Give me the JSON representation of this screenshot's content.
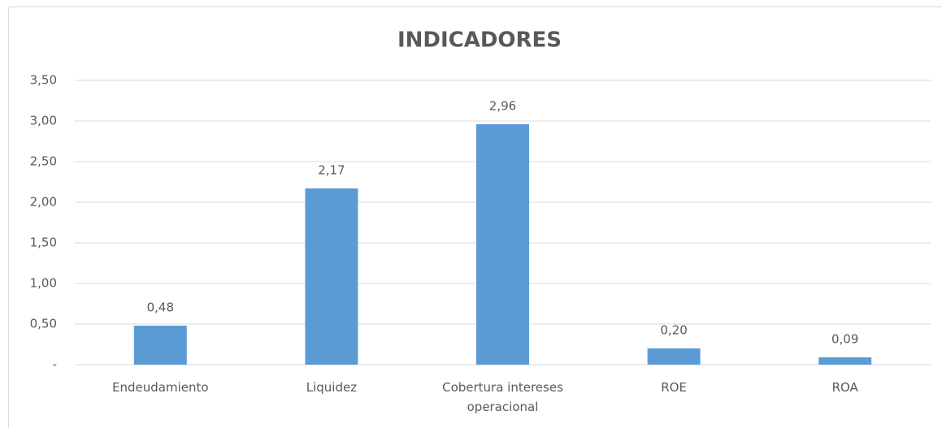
{
  "chart_data": {
    "type": "bar",
    "title": "INDICADORES",
    "categories": [
      "Endeudamiento",
      "Liquidez",
      "Cobertura intereses operacional",
      "ROE",
      "ROA"
    ],
    "values": [
      0.48,
      2.17,
      2.96,
      0.2,
      0.09
    ],
    "value_labels": [
      "0,48",
      "2,17",
      "2,96",
      "0,20",
      "0,09"
    ],
    "color": "#5b9bd5",
    "ylim": [
      0,
      3.5
    ],
    "yticks": [
      {
        "value": 0,
        "label": "-"
      },
      {
        "value": 0.5,
        "label": "0,50"
      },
      {
        "value": 1,
        "label": "1,00"
      },
      {
        "value": 1.5,
        "label": "1,50"
      },
      {
        "value": 2,
        "label": "2,00"
      },
      {
        "value": 2.5,
        "label": "2,50"
      },
      {
        "value": 3,
        "label": "3,00"
      },
      {
        "value": 3.5,
        "label": "3,50"
      }
    ],
    "grid": true
  }
}
